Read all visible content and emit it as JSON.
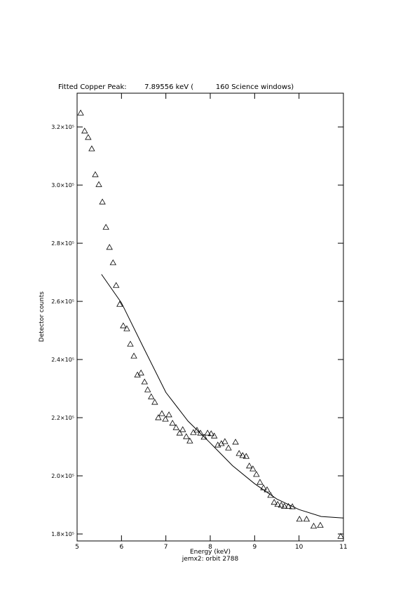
{
  "chart_data": {
    "type": "scatter",
    "title": "Fitted Copper Peak:        7.89556 keV (          160 Science windows)",
    "x_label": "Energy (keV)",
    "y_label": "Detector counts",
    "subtitle": "jemx2: orbit 2788",
    "xlim": [
      5,
      11
    ],
    "xticks": [
      5,
      6,
      7,
      8,
      9,
      10,
      11
    ],
    "ylim": [
      177600,
      331600
    ],
    "yticks": [
      {
        "value": 180000,
        "label": "1.8×10⁵"
      },
      {
        "value": 200000,
        "label": "2.0×10⁵"
      },
      {
        "value": 220000,
        "label": "2.2×10⁵"
      },
      {
        "value": 240000,
        "label": "2.4×10⁵"
      },
      {
        "value": 260000,
        "label": "2.6×10⁵"
      },
      {
        "value": 280000,
        "label": "2.8×10⁵"
      },
      {
        "value": 300000,
        "label": "3.0×10⁵"
      },
      {
        "value": 320000,
        "label": "3.2×10⁵"
      }
    ],
    "series": [
      {
        "mode": "markers",
        "color": "#000000",
        "x": [
          5.08,
          5.17,
          5.25,
          5.33,
          5.41,
          5.49,
          5.57,
          5.65,
          5.73,
          5.81,
          5.88,
          5.96,
          6.04,
          6.12,
          6.2,
          6.28,
          6.36,
          6.44,
          6.52,
          6.59,
          6.67,
          6.75,
          6.83,
          6.91,
          6.99,
          7.07,
          7.15,
          7.23,
          7.31,
          7.38,
          7.46,
          7.54,
          7.62,
          7.7,
          7.78,
          7.86,
          7.94,
          8.02,
          8.09,
          8.17,
          8.25,
          8.33,
          8.41,
          8.57,
          8.65,
          8.73,
          8.81,
          8.88,
          8.96,
          9.04,
          9.12,
          9.2,
          9.28,
          9.36,
          9.44,
          9.52,
          9.6,
          9.67,
          9.76,
          9.85,
          10.01,
          10.17,
          10.33,
          10.48,
          10.94
        ],
        "values": [
          324800,
          318600,
          316400,
          312500,
          303600,
          300200,
          294200,
          285500,
          278600,
          273300,
          265500,
          259000,
          251600,
          250600,
          245300,
          241200,
          234700,
          235400,
          232300,
          229600,
          227200,
          225300,
          220000,
          221400,
          219500,
          221000,
          218100,
          216600,
          214700,
          215900,
          213500,
          212000,
          214900,
          215700,
          214700,
          213300,
          214700,
          214500,
          213700,
          210600,
          211100,
          211800,
          209600,
          211600,
          207700,
          207000,
          206700,
          203400,
          202400,
          200500,
          197800,
          195900,
          195200,
          193300,
          190900,
          190200,
          189900,
          189500,
          189500,
          189400,
          185100,
          185100,
          182700,
          183000,
          179200
        ]
      },
      {
        "mode": "line",
        "color": "#000000",
        "x": [
          5.55,
          6.0,
          6.5,
          7.0,
          7.5,
          8.0,
          8.5,
          9.0,
          9.5,
          10.0,
          10.5,
          11.0
        ],
        "values": [
          269300,
          259500,
          244000,
          228700,
          218800,
          211300,
          203500,
          197300,
          192000,
          188400,
          186000,
          185500
        ]
      }
    ]
  }
}
